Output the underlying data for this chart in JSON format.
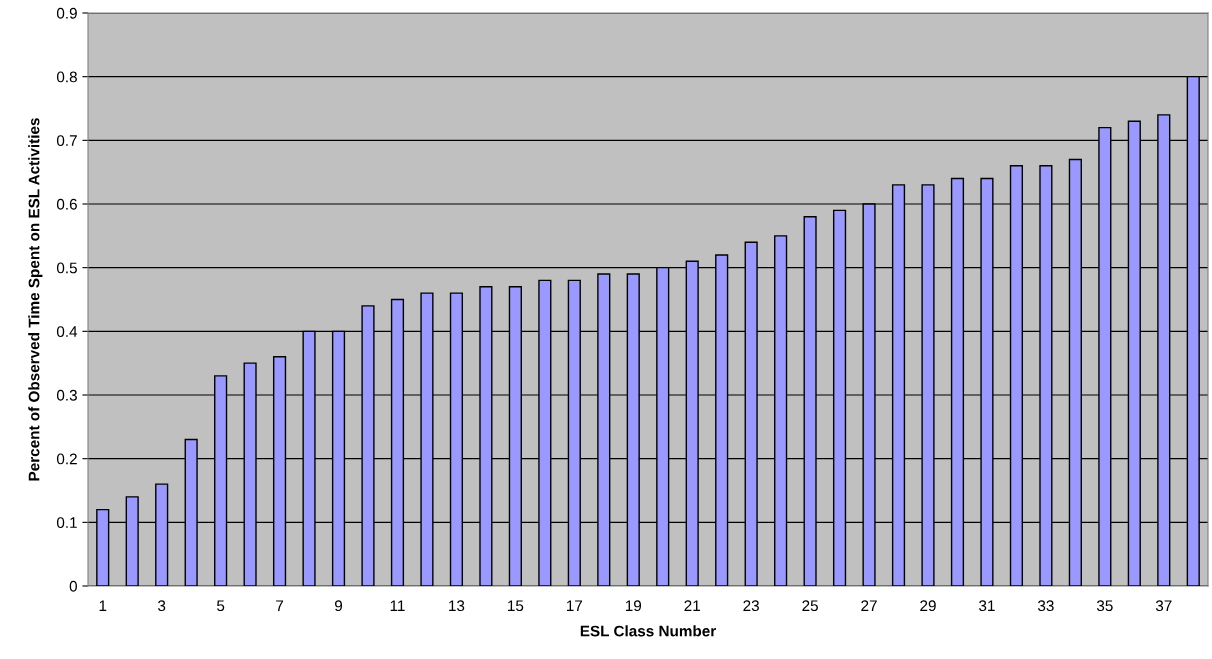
{
  "chart_data": {
    "type": "bar",
    "xlabel": "ESL Class Number",
    "ylabel": "Percent of Observed Time Spent on ESL Activities",
    "categories": [
      "1",
      null,
      "3",
      null,
      "5",
      null,
      "7",
      null,
      "9",
      null,
      "11",
      null,
      "13",
      null,
      "15",
      null,
      "17",
      null,
      "19",
      null,
      "21",
      null,
      "23",
      null,
      "25",
      null,
      "27",
      null,
      "29",
      null,
      "31",
      null,
      "33",
      null,
      "35",
      null,
      "37",
      null
    ],
    "values": [
      0.12,
      0.14,
      0.16,
      0.23,
      0.33,
      0.35,
      0.36,
      0.4,
      0.4,
      0.44,
      0.45,
      0.46,
      0.46,
      0.47,
      0.47,
      0.48,
      0.48,
      0.49,
      0.49,
      0.5,
      0.51,
      0.52,
      0.54,
      0.55,
      0.58,
      0.59,
      0.6,
      0.63,
      0.63,
      0.64,
      0.64,
      0.66,
      0.66,
      0.67,
      0.72,
      0.73,
      0.74,
      0.8
    ],
    "color": "#9999ff",
    "ylim": [
      0,
      0.9
    ],
    "yticks": [
      0,
      0.1,
      0.2,
      0.3,
      0.4,
      0.5,
      0.6,
      0.7,
      0.8,
      0.9
    ],
    "grid": "y"
  }
}
